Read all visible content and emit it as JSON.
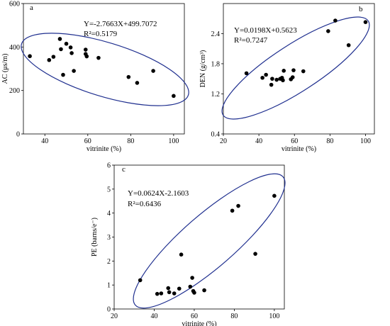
{
  "chart_data": [
    {
      "id": "a",
      "type": "scatter",
      "panel_label": "a",
      "xlabel": "vitrinite (%)",
      "ylabel": "AC (μs/m)",
      "xlim": [
        30,
        105
      ],
      "ylim": [
        0,
        600
      ],
      "xticks": [
        40,
        60,
        80,
        100
      ],
      "yticks": [
        0,
        200,
        400,
        600
      ],
      "equation": "Y=-2.7663X+499.7072",
      "r2": "R²=0.5179",
      "points": [
        {
          "x": 33,
          "y": 358
        },
        {
          "x": 42,
          "y": 340
        },
        {
          "x": 44,
          "y": 355
        },
        {
          "x": 47,
          "y": 437
        },
        {
          "x": 47.5,
          "y": 390
        },
        {
          "x": 48.5,
          "y": 272
        },
        {
          "x": 50,
          "y": 415
        },
        {
          "x": 52,
          "y": 398
        },
        {
          "x": 52.5,
          "y": 372
        },
        {
          "x": 53.5,
          "y": 290
        },
        {
          "x": 59,
          "y": 388
        },
        {
          "x": 59,
          "y": 368
        },
        {
          "x": 59.5,
          "y": 357
        },
        {
          "x": 65,
          "y": 350
        },
        {
          "x": 79,
          "y": 262
        },
        {
          "x": 83,
          "y": 235
        },
        {
          "x": 90.5,
          "y": 290
        },
        {
          "x": 100,
          "y": 175
        }
      ]
    },
    {
      "id": "b",
      "type": "scatter",
      "panel_label": "b",
      "xlabel": "vitrinite (%)",
      "ylabel": "DEN (g/cm³)",
      "xlim": [
        20,
        105
      ],
      "ylim": [
        0.4,
        3.0
      ],
      "xticks": [
        20,
        40,
        60,
        80,
        100
      ],
      "yticks": [
        0.4,
        1.2,
        1.8,
        2.4
      ],
      "equation": "Y=0.0198X+0.5623",
      "r2": "R²=0.7247",
      "points": [
        {
          "x": 33,
          "y": 1.61
        },
        {
          "x": 42,
          "y": 1.52
        },
        {
          "x": 44,
          "y": 1.58
        },
        {
          "x": 47,
          "y": 1.38
        },
        {
          "x": 47.5,
          "y": 1.5
        },
        {
          "x": 50,
          "y": 1.48
        },
        {
          "x": 52,
          "y": 1.5
        },
        {
          "x": 53,
          "y": 1.52
        },
        {
          "x": 53.5,
          "y": 1.47
        },
        {
          "x": 54,
          "y": 1.66
        },
        {
          "x": 58,
          "y": 1.49
        },
        {
          "x": 59,
          "y": 1.53
        },
        {
          "x": 59.5,
          "y": 1.67
        },
        {
          "x": 65,
          "y": 1.65
        },
        {
          "x": 79,
          "y": 2.45
        },
        {
          "x": 83,
          "y": 2.66
        },
        {
          "x": 90.5,
          "y": 2.17
        },
        {
          "x": 100,
          "y": 2.63
        }
      ]
    },
    {
      "id": "c",
      "type": "scatter",
      "panel_label": "c",
      "xlabel": "vitrinite (%)",
      "ylabel": "PE (barns/e⁻)",
      "xlim": [
        20,
        105
      ],
      "ylim": [
        0,
        6
      ],
      "xticks": [
        20,
        40,
        60,
        80,
        100
      ],
      "yticks": [
        0,
        1,
        2,
        3,
        4,
        5,
        6
      ],
      "equation": "Y=0.0624X-2.1603",
      "r2": "R²=0.6436",
      "points": [
        {
          "x": 33,
          "y": 1.2
        },
        {
          "x": 41.5,
          "y": 0.63
        },
        {
          "x": 43.5,
          "y": 0.65
        },
        {
          "x": 47,
          "y": 0.87
        },
        {
          "x": 47.5,
          "y": 0.7
        },
        {
          "x": 50,
          "y": 0.65
        },
        {
          "x": 52.5,
          "y": 0.85
        },
        {
          "x": 53.5,
          "y": 2.27
        },
        {
          "x": 58,
          "y": 0.93
        },
        {
          "x": 59,
          "y": 1.3
        },
        {
          "x": 59.5,
          "y": 0.75
        },
        {
          "x": 60,
          "y": 0.68
        },
        {
          "x": 65,
          "y": 0.78
        },
        {
          "x": 79,
          "y": 4.1
        },
        {
          "x": 82,
          "y": 4.3
        },
        {
          "x": 90.5,
          "y": 2.3
        },
        {
          "x": 100,
          "y": 4.72
        }
      ]
    }
  ]
}
